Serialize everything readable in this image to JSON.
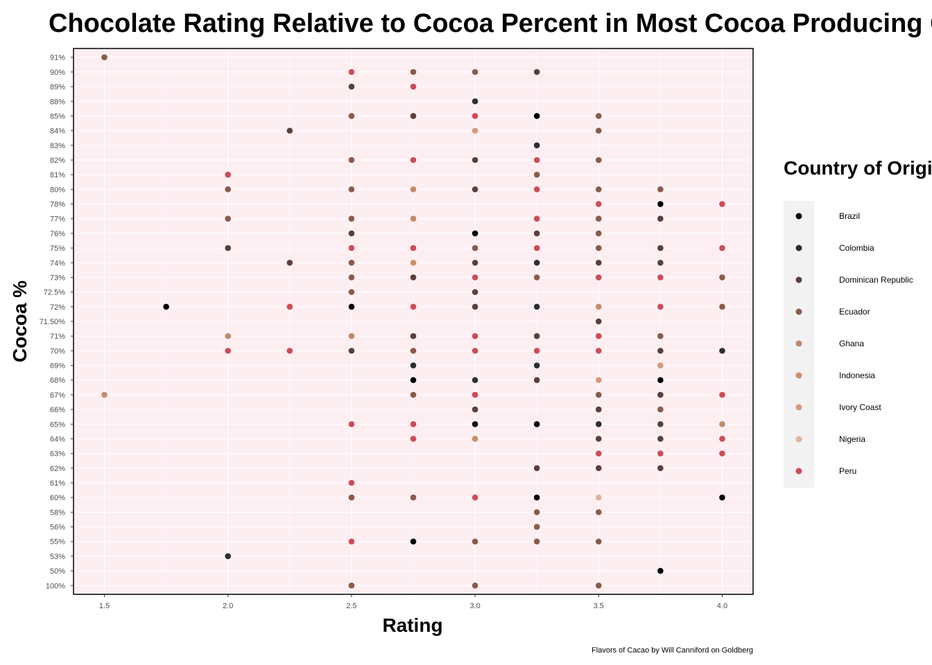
{
  "chart_data": {
    "type": "scatter",
    "title": "Chocolate Rating Relative to Cocoa Percent in Most Cocoa Producing Countries",
    "xlabel": "Rating",
    "ylabel": "Cocoa %",
    "caption": "Flavors of Cacao by Will Canniford on Goldberg",
    "legend_title": "Country of Origin",
    "legend_position": "right",
    "xlim": [
      1.375,
      4.125
    ],
    "x_ticks": [
      1.5,
      2.0,
      2.5,
      3.0,
      3.5,
      4.0
    ],
    "x_tick_labels": [
      "1.5",
      "2.0",
      "2.5",
      "3.0",
      "3.5",
      "4.0"
    ],
    "y_categories": [
      "100%",
      "50%",
      "53%",
      "55%",
      "56%",
      "58%",
      "60%",
      "61%",
      "62%",
      "63%",
      "64%",
      "65%",
      "66%",
      "67%",
      "68%",
      "69%",
      "70%",
      "71%",
      "71.50%",
      "72%",
      "72.5%",
      "73%",
      "74%",
      "75%",
      "76%",
      "77%",
      "78%",
      "80%",
      "81%",
      "82%",
      "83%",
      "84%",
      "85%",
      "88%",
      "89%",
      "90%",
      "91%"
    ],
    "grid": true,
    "panel_background": "#fdeef2",
    "series": [
      {
        "name": "Brazil",
        "color": "#000000",
        "points": [
          [
            3.25,
            "85%"
          ],
          [
            3.75,
            "78%"
          ],
          [
            3.0,
            "76%"
          ],
          [
            1.75,
            "72%"
          ],
          [
            2.5,
            "72%"
          ],
          [
            2.75,
            "68%"
          ],
          [
            3.75,
            "68%"
          ],
          [
            3.0,
            "65%"
          ],
          [
            3.25,
            "65%"
          ],
          [
            3.25,
            "60%"
          ],
          [
            4.0,
            "60%"
          ],
          [
            2.75,
            "55%"
          ],
          [
            3.75,
            "50%"
          ]
        ]
      },
      {
        "name": "Colombia",
        "color": "#2e2e2e",
        "points": [
          [
            3.0,
            "88%"
          ],
          [
            3.25,
            "83%"
          ],
          [
            3.25,
            "74%"
          ],
          [
            3.25,
            "72%"
          ],
          [
            4.0,
            "70%"
          ],
          [
            2.75,
            "69%"
          ],
          [
            3.25,
            "69%"
          ],
          [
            3.0,
            "68%"
          ],
          [
            3.5,
            "65%"
          ],
          [
            2.0,
            "53%"
          ]
        ]
      },
      {
        "name": "Dominican Republic",
        "color": "#5b3f3c",
        "points": [
          [
            3.25,
            "90%"
          ],
          [
            2.5,
            "89%"
          ],
          [
            2.75,
            "85%"
          ],
          [
            2.25,
            "84%"
          ],
          [
            3.0,
            "82%"
          ],
          [
            3.0,
            "80%"
          ],
          [
            3.75,
            "77%"
          ],
          [
            2.5,
            "76%"
          ],
          [
            3.25,
            "76%"
          ],
          [
            2.0,
            "75%"
          ],
          [
            3.75,
            "75%"
          ],
          [
            2.25,
            "74%"
          ],
          [
            3.0,
            "74%"
          ],
          [
            3.5,
            "74%"
          ],
          [
            3.75,
            "74%"
          ],
          [
            2.75,
            "73%"
          ],
          [
            3.0,
            "72.5%"
          ],
          [
            3.0,
            "72%"
          ],
          [
            3.5,
            "71.50%"
          ],
          [
            2.75,
            "71%"
          ],
          [
            3.25,
            "71%"
          ],
          [
            2.5,
            "70%"
          ],
          [
            3.75,
            "70%"
          ],
          [
            3.25,
            "68%"
          ],
          [
            3.75,
            "67%"
          ],
          [
            3.0,
            "66%"
          ],
          [
            3.5,
            "66%"
          ],
          [
            3.75,
            "65%"
          ],
          [
            3.5,
            "64%"
          ],
          [
            3.75,
            "64%"
          ],
          [
            3.25,
            "62%"
          ],
          [
            3.5,
            "62%"
          ],
          [
            3.75,
            "62%"
          ]
        ]
      },
      {
        "name": "Ecuador",
        "color": "#8b5a4a",
        "points": [
          [
            1.5,
            "91%"
          ],
          [
            2.75,
            "90%"
          ],
          [
            3.0,
            "90%"
          ],
          [
            2.5,
            "85%"
          ],
          [
            3.5,
            "85%"
          ],
          [
            3.5,
            "84%"
          ],
          [
            2.5,
            "82%"
          ],
          [
            3.5,
            "82%"
          ],
          [
            3.25,
            "81%"
          ],
          [
            2.0,
            "80%"
          ],
          [
            2.5,
            "80%"
          ],
          [
            3.5,
            "80%"
          ],
          [
            3.75,
            "80%"
          ],
          [
            2.0,
            "77%"
          ],
          [
            2.5,
            "77%"
          ],
          [
            3.5,
            "77%"
          ],
          [
            3.5,
            "76%"
          ],
          [
            3.0,
            "75%"
          ],
          [
            3.5,
            "75%"
          ],
          [
            2.5,
            "74%"
          ],
          [
            2.5,
            "73%"
          ],
          [
            3.25,
            "73%"
          ],
          [
            4.0,
            "73%"
          ],
          [
            2.5,
            "72.5%"
          ],
          [
            4.0,
            "72%"
          ],
          [
            3.75,
            "71%"
          ],
          [
            2.75,
            "70%"
          ],
          [
            2.75,
            "67%"
          ],
          [
            3.5,
            "67%"
          ],
          [
            3.75,
            "66%"
          ],
          [
            2.5,
            "60%"
          ],
          [
            2.75,
            "60%"
          ],
          [
            3.25,
            "58%"
          ],
          [
            3.5,
            "58%"
          ],
          [
            3.25,
            "56%"
          ],
          [
            3.0,
            "55%"
          ],
          [
            3.25,
            "55%"
          ],
          [
            3.5,
            "55%"
          ],
          [
            2.5,
            "100%"
          ],
          [
            3.0,
            "100%"
          ],
          [
            3.5,
            "100%"
          ]
        ]
      },
      {
        "name": "Ghana",
        "color": "#c08a6a",
        "points": [
          [
            2.75,
            "80%"
          ],
          [
            2.75,
            "77%"
          ],
          [
            2.0,
            "71%"
          ],
          [
            2.5,
            "71%"
          ],
          [
            4.0,
            "65%"
          ]
        ]
      },
      {
        "name": "Indonesia",
        "color": "#c98e6b",
        "points": [
          [
            2.75,
            "74%"
          ],
          [
            3.5,
            "72%"
          ],
          [
            1.5,
            "67%"
          ],
          [
            3.0,
            "64%"
          ]
        ]
      },
      {
        "name": "Ivory Coast",
        "color": "#d59a7d",
        "points": [
          [
            3.0,
            "84%"
          ],
          [
            3.75,
            "69%"
          ],
          [
            3.5,
            "68%"
          ]
        ]
      },
      {
        "name": "Nigeria",
        "color": "#e0b49a",
        "points": [
          [
            3.5,
            "60%"
          ]
        ]
      },
      {
        "name": "Peru",
        "color": "#cf4a57",
        "points": [
          [
            2.5,
            "90%"
          ],
          [
            2.75,
            "89%"
          ],
          [
            3.0,
            "85%"
          ],
          [
            2.75,
            "82%"
          ],
          [
            3.25,
            "82%"
          ],
          [
            2.0,
            "81%"
          ],
          [
            3.25,
            "80%"
          ],
          [
            3.5,
            "78%"
          ],
          [
            4.0,
            "78%"
          ],
          [
            3.25,
            "77%"
          ],
          [
            2.5,
            "75%"
          ],
          [
            2.75,
            "75%"
          ],
          [
            3.25,
            "75%"
          ],
          [
            4.0,
            "75%"
          ],
          [
            3.0,
            "73%"
          ],
          [
            3.5,
            "73%"
          ],
          [
            3.75,
            "73%"
          ],
          [
            2.25,
            "72%"
          ],
          [
            2.75,
            "72%"
          ],
          [
            3.75,
            "72%"
          ],
          [
            3.0,
            "71%"
          ],
          [
            3.5,
            "71%"
          ],
          [
            2.0,
            "70%"
          ],
          [
            2.25,
            "70%"
          ],
          [
            3.0,
            "70%"
          ],
          [
            3.25,
            "70%"
          ],
          [
            3.5,
            "70%"
          ],
          [
            3.0,
            "67%"
          ],
          [
            4.0,
            "67%"
          ],
          [
            2.5,
            "65%"
          ],
          [
            2.75,
            "65%"
          ],
          [
            2.75,
            "64%"
          ],
          [
            4.0,
            "64%"
          ],
          [
            3.5,
            "63%"
          ],
          [
            3.75,
            "63%"
          ],
          [
            4.0,
            "63%"
          ],
          [
            2.5,
            "61%"
          ],
          [
            3.0,
            "60%"
          ],
          [
            2.5,
            "55%"
          ]
        ]
      }
    ]
  }
}
